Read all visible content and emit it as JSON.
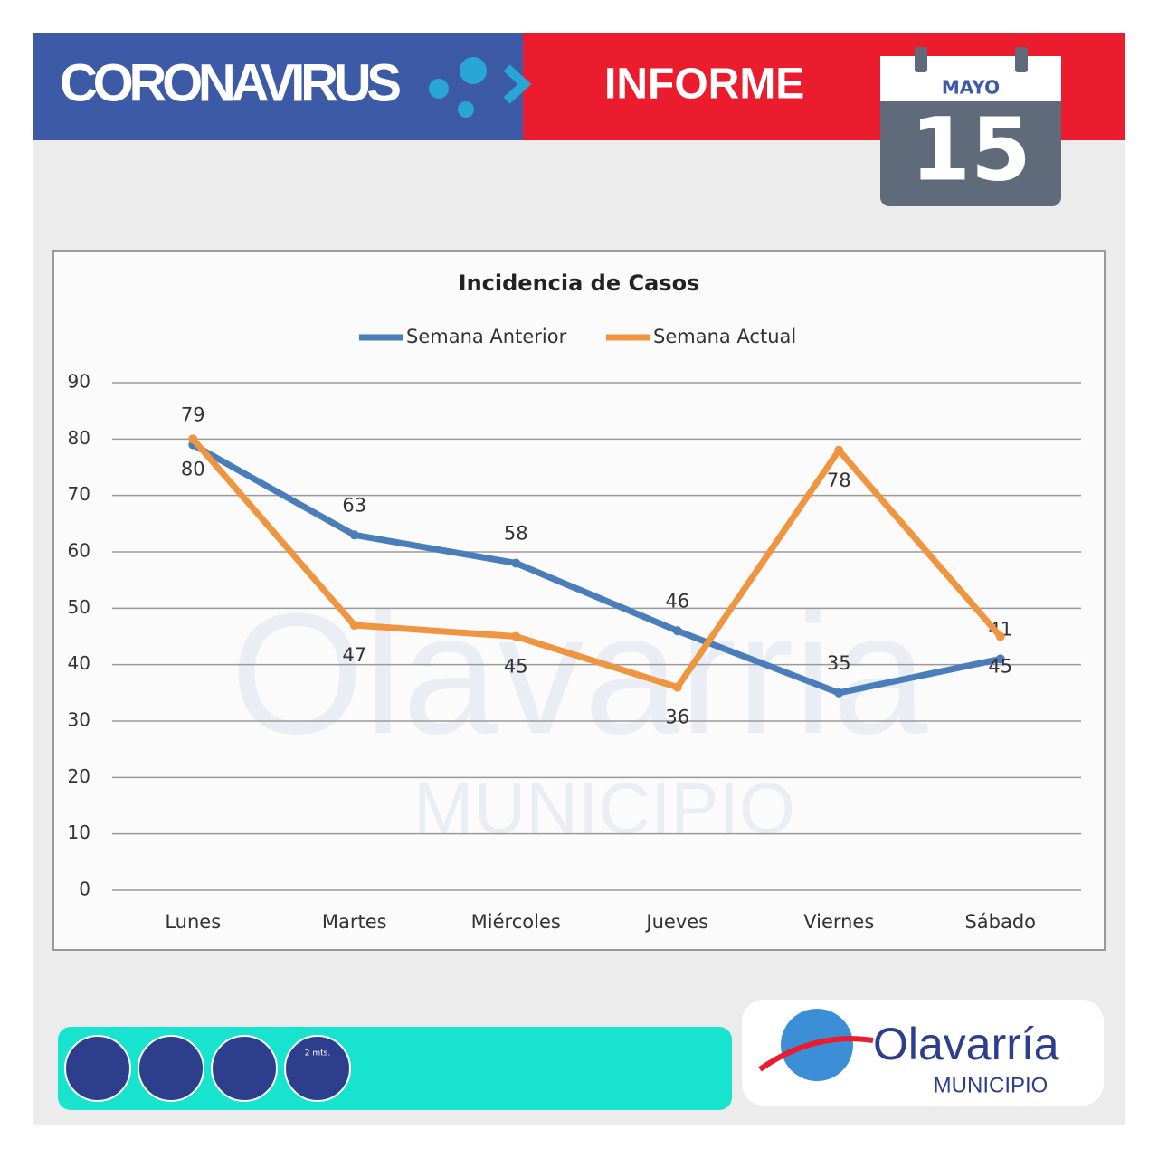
{
  "header": {
    "title": "CORONAVIRUS",
    "subtitle": "INFORME",
    "month": "MAYO",
    "day": "15"
  },
  "chart_data": {
    "type": "line",
    "title": "Incidencia de Casos",
    "categories": [
      "Lunes",
      "Martes",
      "Miércoles",
      "Jueves",
      "Viernes",
      "Sábado"
    ],
    "series": [
      {
        "name": "Semana Anterior",
        "color": "#4a7ebb",
        "values": [
          79,
          63,
          58,
          46,
          35,
          41
        ]
      },
      {
        "name": "Semana Actual",
        "color": "#f0953f",
        "values": [
          80,
          47,
          45,
          36,
          78,
          45
        ]
      }
    ],
    "ylim": [
      0,
      90
    ],
    "yticks": [
      0,
      10,
      20,
      30,
      40,
      50,
      60,
      70,
      80,
      90
    ],
    "grid": true,
    "legend": "top"
  },
  "watermark": {
    "name": "Olavarria",
    "sub": "MUNICIPIO"
  },
  "footer": {
    "icon_label": "2 mts.",
    "logo": "Olavarría",
    "logo_sub": "MUNICIPIO"
  }
}
